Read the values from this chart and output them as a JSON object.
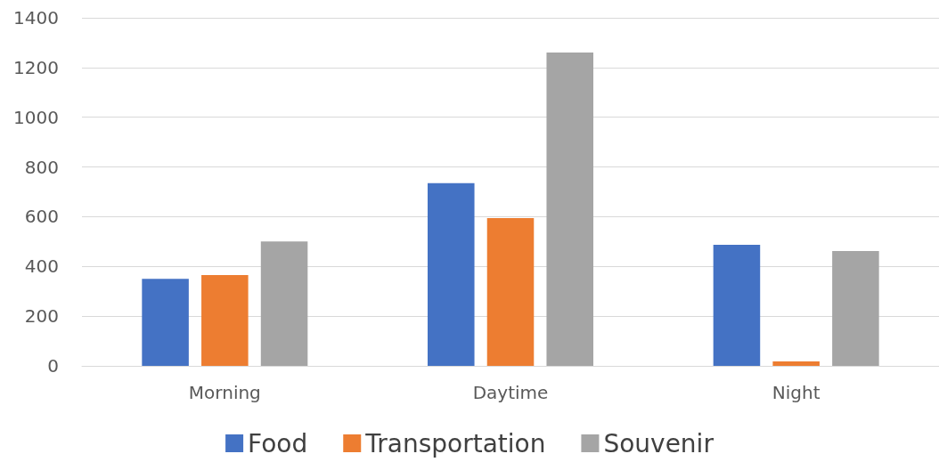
{
  "chart_data": {
    "type": "bar",
    "categories": [
      "Morning",
      "Daytime",
      "Night"
    ],
    "series": [
      {
        "name": "Food",
        "color": "#4472c4",
        "values": [
          350,
          735,
          487
        ]
      },
      {
        "name": "Transportation",
        "color": "#ed7d31",
        "values": [
          365,
          594,
          18
        ]
      },
      {
        "name": "Souvenir",
        "color": "#a5a5a5",
        "values": [
          500,
          1260,
          462
        ]
      }
    ],
    "ylim": [
      0,
      1400
    ],
    "yticks": [
      0,
      200,
      400,
      600,
      800,
      1000,
      1200,
      1400
    ],
    "grid": "y",
    "legend": "bottom"
  }
}
